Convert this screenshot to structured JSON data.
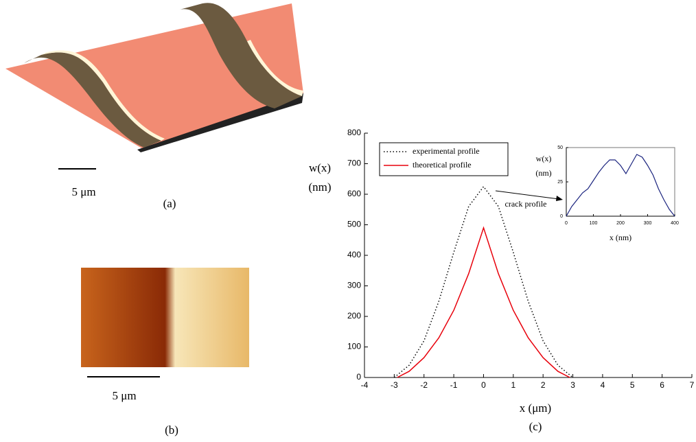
{
  "figure": {
    "panel_a": {
      "scale_label": "5 μm",
      "label": "(a)"
    },
    "panel_b": {
      "scale_label": "5 μm",
      "label": "(b)"
    },
    "panel_c": {
      "label": "(c)"
    }
  },
  "chart_data": [
    {
      "type": "line",
      "xlabel": "x (μm)",
      "ylabel": [
        "w(x)",
        "(nm)"
      ],
      "xlim": [
        -4,
        7
      ],
      "xticks": [
        -4,
        -3,
        -2,
        -1,
        0,
        1,
        2,
        3,
        4,
        5,
        6,
        7
      ],
      "ylim": [
        0,
        800
      ],
      "yticks": [
        0,
        100,
        200,
        300,
        400,
        500,
        600,
        700,
        800
      ],
      "legend": "upper left",
      "annotation": "crack profile",
      "series": [
        {
          "name": "experimental profile",
          "color": "#000000",
          "line_style": "dotted",
          "x": [
            -3,
            -2.5,
            -2,
            -1.5,
            -1,
            -0.5,
            0,
            0.5,
            1,
            1.5,
            2,
            2.5,
            3
          ],
          "values": [
            0,
            40,
            120,
            250,
            410,
            560,
            625,
            560,
            410,
            250,
            120,
            40,
            0
          ]
        },
        {
          "name": "theoretical profile",
          "color": "#e8000b",
          "line_style": "solid",
          "x": [
            -2.9,
            -2.5,
            -2,
            -1.5,
            -1,
            -0.5,
            0,
            0.5,
            1,
            1.5,
            2,
            2.5,
            2.9
          ],
          "values": [
            0,
            20,
            65,
            130,
            220,
            340,
            490,
            340,
            220,
            130,
            65,
            20,
            0
          ]
        }
      ]
    },
    {
      "type": "line",
      "xlabel": "x (nm)",
      "ylabel": [
        "w(x)",
        "(nm)"
      ],
      "xlim": [
        0,
        400
      ],
      "xticks": [
        0,
        100,
        200,
        300,
        400
      ],
      "ylim": [
        0,
        50
      ],
      "yticks": [
        0,
        25,
        50
      ],
      "series": [
        {
          "color": "#1a237e",
          "line_style": "solid",
          "x": [
            0,
            20,
            40,
            60,
            80,
            100,
            120,
            140,
            160,
            180,
            200,
            220,
            240,
            260,
            280,
            300,
            320,
            340,
            360,
            380,
            400
          ],
          "values": [
            0,
            7,
            12,
            17,
            20,
            26,
            32,
            37,
            41,
            41,
            37,
            31,
            38,
            45,
            43,
            37,
            30,
            20,
            12,
            5,
            0
          ]
        }
      ]
    }
  ]
}
